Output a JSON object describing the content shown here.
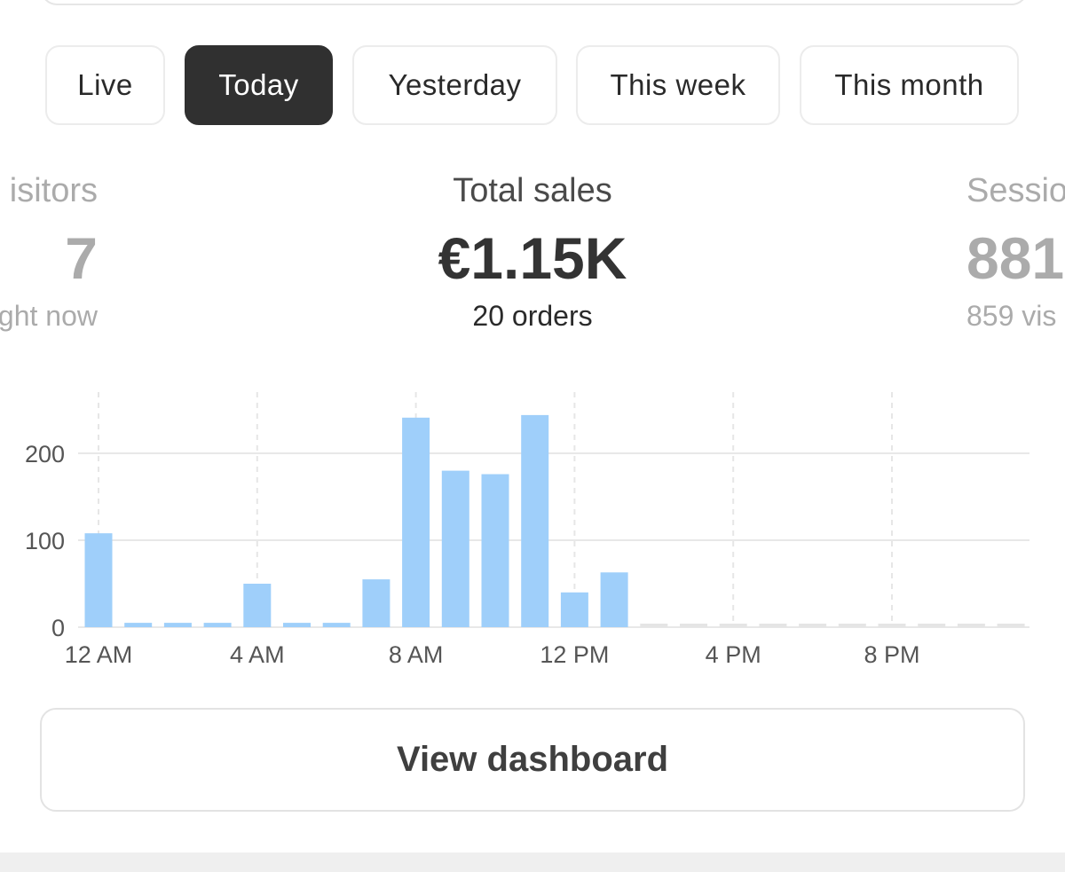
{
  "tabs": [
    {
      "label": "Live",
      "active": false
    },
    {
      "label": "Today",
      "active": true
    },
    {
      "label": "Yesterday",
      "active": false
    },
    {
      "label": "This week",
      "active": false
    },
    {
      "label": "This month",
      "active": false
    }
  ],
  "metrics": {
    "left": {
      "label": "isitors",
      "value": "7",
      "sub": "ght now"
    },
    "center": {
      "label": "Total sales",
      "value": "€1.15K",
      "sub": "20 orders"
    },
    "right": {
      "label": "Sessio",
      "value": "881",
      "sub": "859 vis"
    }
  },
  "chart_data": {
    "type": "bar",
    "categories": [
      "12 AM",
      "1 AM",
      "2 AM",
      "3 AM",
      "4 AM",
      "5 AM",
      "6 AM",
      "7 AM",
      "8 AM",
      "9 AM",
      "10 AM",
      "11 AM",
      "12 PM",
      "1 PM",
      "2 PM",
      "3 PM",
      "4 PM",
      "5 PM",
      "6 PM",
      "7 PM",
      "8 PM",
      "9 PM",
      "10 PM",
      "11 PM"
    ],
    "values": [
      108,
      5,
      5,
      5,
      50,
      5,
      5,
      55,
      241,
      180,
      176,
      244,
      40,
      63,
      null,
      null,
      null,
      null,
      null,
      null,
      null,
      null,
      null,
      null
    ],
    "x_tick_labels": [
      "12 AM",
      "4 AM",
      "8 AM",
      "12 PM",
      "4 PM",
      "8 PM"
    ],
    "y_tick_labels": [
      "0",
      "100",
      "200"
    ],
    "ylim": [
      0,
      270
    ],
    "title": "",
    "xlabel": "",
    "ylabel": "",
    "grid": true,
    "bar_color": "#9fcffa",
    "future_color": "#e5e5e5"
  },
  "button": {
    "label": "View dashboard"
  }
}
